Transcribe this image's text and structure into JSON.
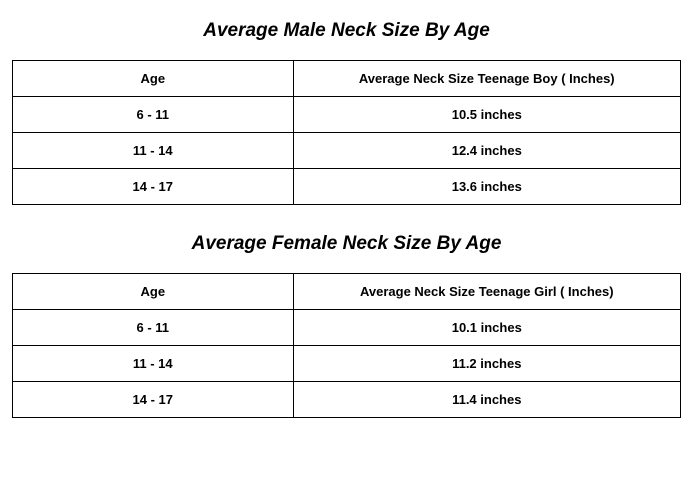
{
  "male_section": {
    "title": "Average Male Neck Size By Age",
    "columns": [
      "Age",
      "Average Neck Size Teenage Boy ( Inches)"
    ],
    "rows": [
      [
        "6 - 11",
        "10.5 inches"
      ],
      [
        "11 - 14",
        "12.4 inches"
      ],
      [
        "14 - 17",
        "13.6 inches"
      ]
    ]
  },
  "female_section": {
    "title": "Average Female Neck Size By Age",
    "columns": [
      "Age",
      "Average Neck Size Teenage Girl ( Inches)"
    ],
    "rows": [
      [
        "6 - 11",
        "10.1 inches"
      ],
      [
        "11 - 14",
        "11.2 inches"
      ],
      [
        "14 - 17",
        "11.4 inches"
      ]
    ]
  },
  "styling": {
    "background_color": "#ffffff",
    "border_color": "#000000",
    "text_color": "#000000",
    "title_fontsize": 19,
    "title_fontweight": 900,
    "title_fontstyle": "italic",
    "cell_fontsize": 13,
    "cell_fontweight": 700,
    "col_widths_pct": [
      42,
      58
    ]
  }
}
